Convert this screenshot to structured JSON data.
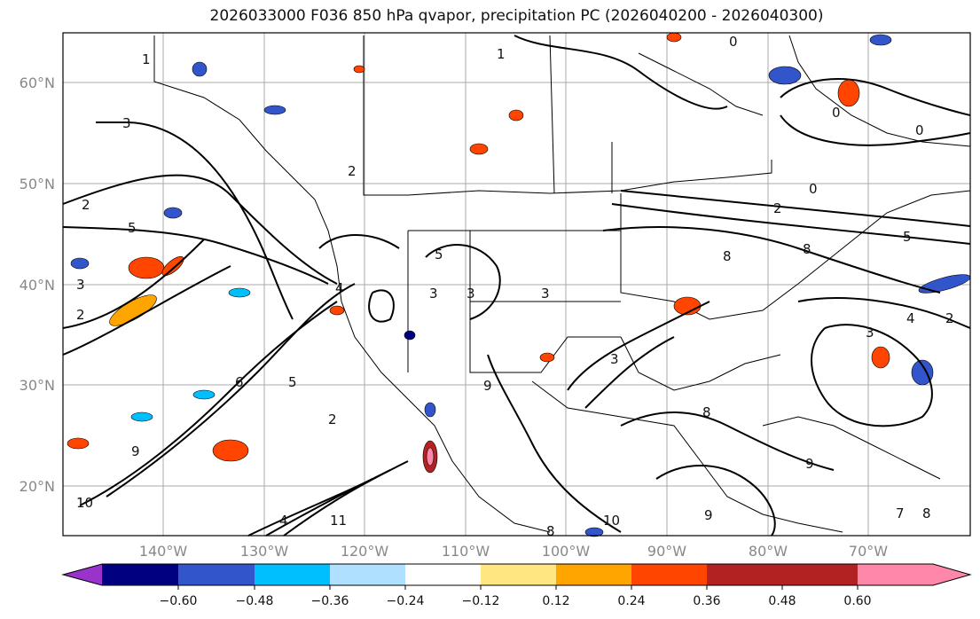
{
  "title": "2026033000 F036 850 hPa qvapor, precipitation PC (2026040200 - 2026040300)",
  "lat_labels": [
    "60°N",
    "50°N",
    "40°N",
    "30°N",
    "20°N"
  ],
  "lon_labels": [
    "140°W",
    "130°W",
    "120°W",
    "110°W",
    "100°W",
    "90°W",
    "80°W",
    "70°W"
  ],
  "colorbar": {
    "ticks": [
      "−0.60",
      "−0.48",
      "−0.36",
      "−0.24",
      "−0.12",
      "0.12",
      "0.24",
      "0.36",
      "0.48",
      "0.60"
    ],
    "colors": [
      "#9933cc",
      "#000080",
      "#3355cc",
      "#00bfff",
      "#b0e0ff",
      "#ffffff",
      "#ffe680",
      "#ffa500",
      "#ff4500",
      "#b22222",
      "#ff88aa"
    ]
  },
  "contour_labels": [
    {
      "text": "1"
    },
    {
      "text": "1"
    },
    {
      "text": "0"
    },
    {
      "text": "0"
    },
    {
      "text": "0"
    },
    {
      "text": "3"
    },
    {
      "text": "2"
    },
    {
      "text": "0"
    },
    {
      "text": "2"
    },
    {
      "text": "5"
    },
    {
      "text": "2"
    },
    {
      "text": "5"
    },
    {
      "text": "3"
    },
    {
      "text": "4"
    },
    {
      "text": "3"
    },
    {
      "text": "3"
    },
    {
      "text": "3"
    },
    {
      "text": "5"
    },
    {
      "text": "8"
    },
    {
      "text": "8"
    },
    {
      "text": "4"
    },
    {
      "text": "2"
    },
    {
      "text": "3"
    },
    {
      "text": "2"
    },
    {
      "text": "5"
    },
    {
      "text": "3"
    },
    {
      "text": "9"
    },
    {
      "text": "6"
    },
    {
      "text": "8"
    },
    {
      "text": "9"
    },
    {
      "text": "2"
    },
    {
      "text": "9"
    },
    {
      "text": "10"
    },
    {
      "text": "4"
    },
    {
      "text": "8"
    },
    {
      "text": "9"
    },
    {
      "text": "8"
    },
    {
      "text": "7"
    },
    {
      "text": "11"
    },
    {
      "text": "10"
    }
  ]
}
